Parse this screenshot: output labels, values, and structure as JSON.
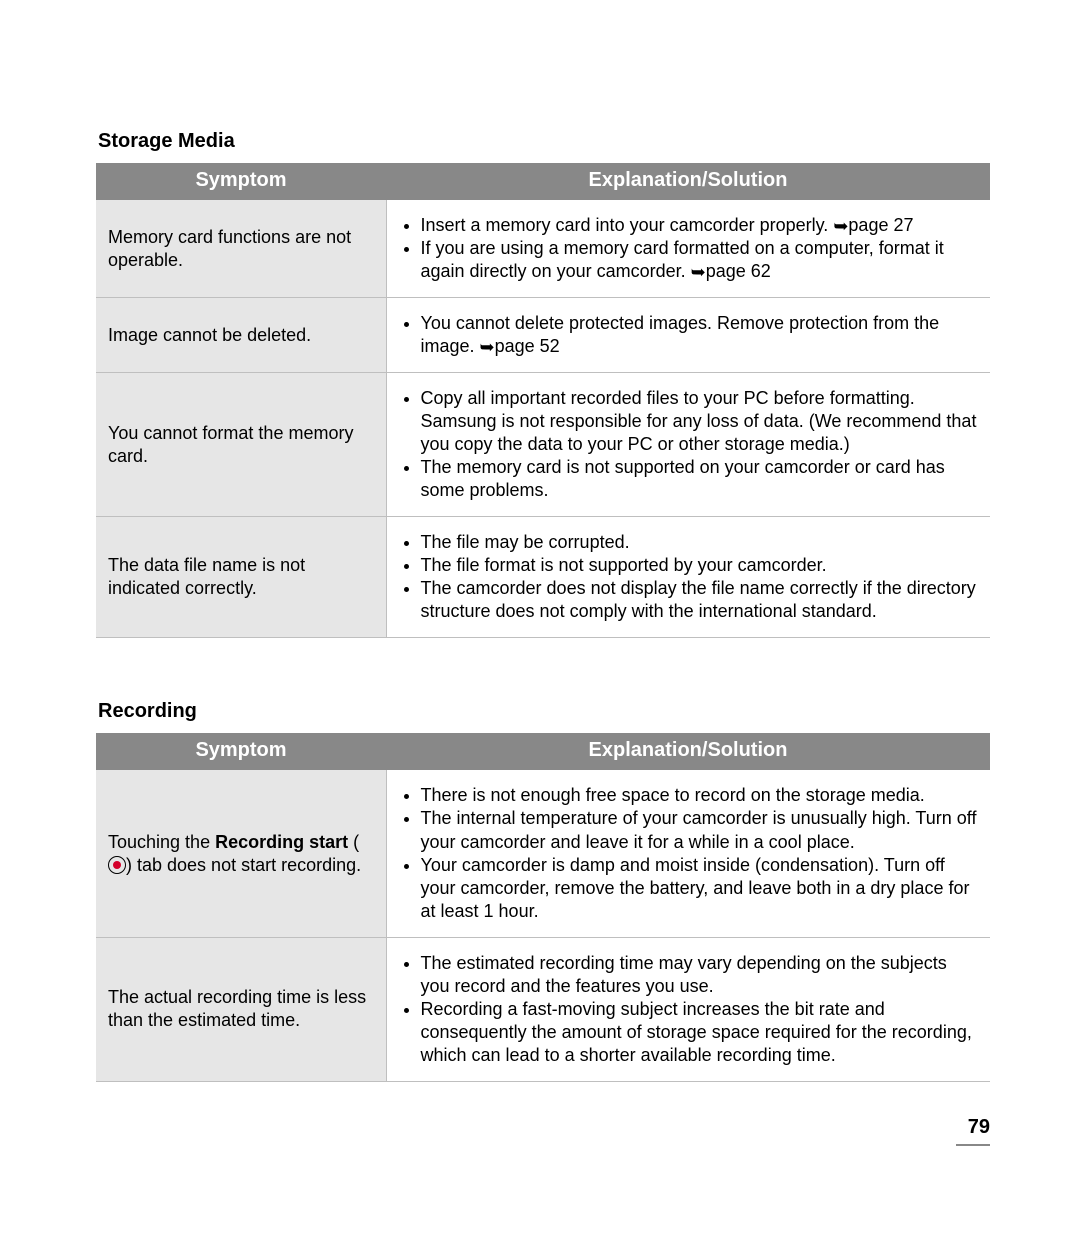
{
  "page_number": "79",
  "colors": {
    "header_bg": "#888888",
    "header_text": "#ffffff",
    "symptom_bg": "#e6e6e6",
    "border": "#bfbfbf",
    "text": "#000000",
    "record_dot": "#d4002a"
  },
  "sections": [
    {
      "title": "Storage Media",
      "columns": {
        "symptom": "Symptom",
        "explanation": "Explanation/Solution"
      },
      "rows": [
        {
          "symptom": "Memory card functions are not operable.",
          "bullets": [
            {
              "text": "Insert a memory card into your camcorder properly. ",
              "page_ref": "page 27"
            },
            {
              "text": "If you are using a memory card formatted on a computer, format it again directly on your camcorder. ",
              "page_ref": "page 62"
            }
          ]
        },
        {
          "symptom": "Image cannot be deleted.",
          "bullets": [
            {
              "text": "You cannot delete protected images. Remove protection from the image. ",
              "page_ref": "page 52"
            }
          ]
        },
        {
          "symptom": "You cannot format the memory card.",
          "bullets": [
            {
              "text": "Copy all important recorded files to your PC before formatting. Samsung is not responsible for any loss of data. (We recommend that you copy the data to your PC or other storage media.)"
            },
            {
              "text": "The memory card is not supported on your camcorder or card has some problems."
            }
          ]
        },
        {
          "symptom": "The data file name is not indicated correctly.",
          "bullets": [
            {
              "text": "The file may be corrupted."
            },
            {
              "text": "The file format is not supported by your camcorder."
            },
            {
              "text": "The camcorder does not display the file name correctly if the directory structure does not comply with the international standard."
            }
          ]
        }
      ]
    },
    {
      "title": "Recording",
      "columns": {
        "symptom": "Symptom",
        "explanation": "Explanation/Solution"
      },
      "rows": [
        {
          "symptom_parts": {
            "pre": "Touching the ",
            "bold": "Recording start",
            "mid_open": " (",
            "mid_close": ") tab does not start recording."
          },
          "bullets": [
            {
              "text": "There is not enough free space to record on the storage media."
            },
            {
              "text": "The internal temperature of your camcorder is unusually high. Turn off your camcorder and leave it for a while in a cool place."
            },
            {
              "text": "Your camcorder is damp and moist inside (condensation). Turn off your camcorder, remove the battery, and leave both in a dry place for at least 1 hour."
            }
          ]
        },
        {
          "symptom": "The actual recording time is less than the estimated time.",
          "bullets": [
            {
              "text": "The estimated recording time may vary depending on the subjects you record and the features you use."
            },
            {
              "text": "Recording a fast-moving subject increases the bit rate and consequently the amount of storage space required for the recording, which can lead to a shorter available recording time."
            }
          ]
        }
      ]
    }
  ]
}
